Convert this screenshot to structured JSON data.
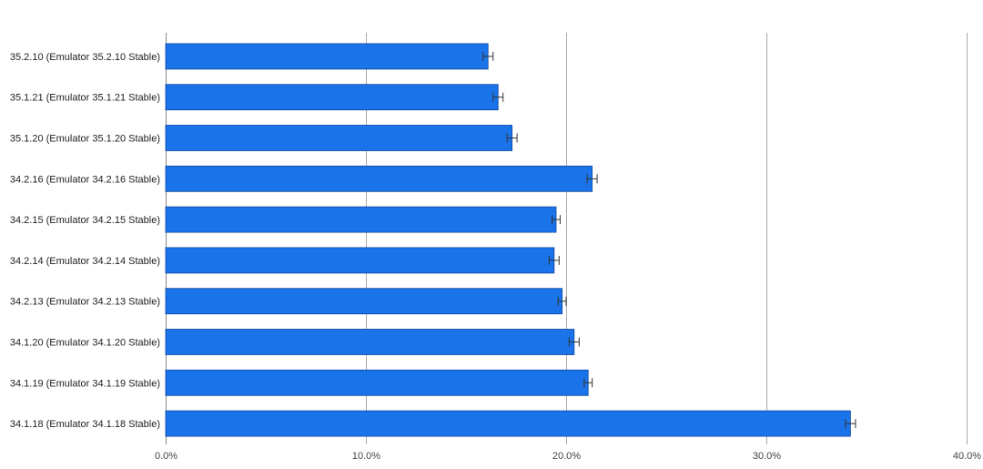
{
  "chart_data": {
    "type": "bar",
    "orientation": "horizontal",
    "categories": [
      "35.2.10 (Emulator 35.2.10 Stable)",
      "35.1.21 (Emulator 35.1.21 Stable)",
      "35.1.20 (Emulator 35.1.20 Stable)",
      "34.2.16 (Emulator 34.2.16 Stable)",
      "34.2.15 (Emulator 34.2.15 Stable)",
      "34.2.14 (Emulator 34.2.14 Stable)",
      "34.2.13 (Emulator 34.2.13 Stable)",
      "34.1.20 (Emulator 34.1.20 Stable)",
      "34.1.19 (Emulator 34.1.19 Stable)",
      "34.1.18 (Emulator 34.1.18 Stable)"
    ],
    "values": [
      16.1,
      16.6,
      17.3,
      21.3,
      19.5,
      19.4,
      19.8,
      20.4,
      21.1,
      34.2
    ],
    "error": [
      0.25,
      0.25,
      0.25,
      0.25,
      0.2,
      0.25,
      0.2,
      0.25,
      0.2,
      0.25
    ],
    "xlim": [
      0,
      40
    ],
    "ticks": [
      0,
      10,
      20,
      30,
      40
    ],
    "tick_labels": [
      "0.0%",
      "10.0%",
      "20.0%",
      "30.0%",
      "40.0%"
    ],
    "title": "",
    "xlabel": "",
    "ylabel": "",
    "grid": "vertical",
    "legend": "none",
    "colors": {
      "bar": "#1a73e8",
      "bar_edge": "#0d47a1",
      "grid": "#aaaaaa",
      "error_bar": "#333333"
    }
  }
}
